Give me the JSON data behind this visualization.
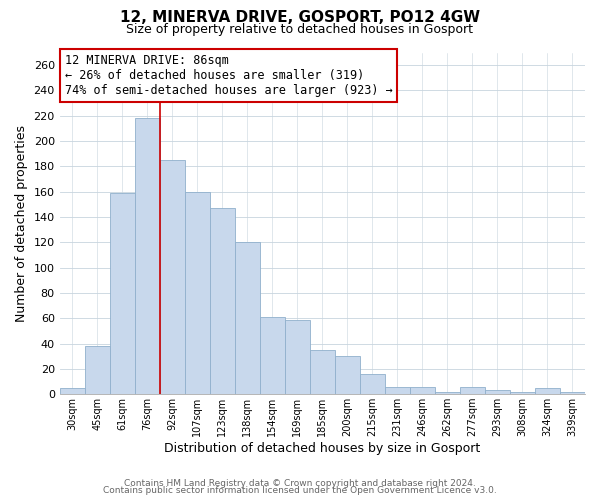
{
  "title": "12, MINERVA DRIVE, GOSPORT, PO12 4GW",
  "subtitle": "Size of property relative to detached houses in Gosport",
  "xlabel": "Distribution of detached houses by size in Gosport",
  "ylabel": "Number of detached properties",
  "bar_labels": [
    "30sqm",
    "45sqm",
    "61sqm",
    "76sqm",
    "92sqm",
    "107sqm",
    "123sqm",
    "138sqm",
    "154sqm",
    "169sqm",
    "185sqm",
    "200sqm",
    "215sqm",
    "231sqm",
    "246sqm",
    "262sqm",
    "277sqm",
    "293sqm",
    "308sqm",
    "324sqm",
    "339sqm"
  ],
  "bar_values": [
    5,
    38,
    159,
    218,
    185,
    160,
    147,
    120,
    61,
    59,
    35,
    30,
    16,
    6,
    6,
    2,
    6,
    3,
    2,
    5,
    2
  ],
  "bar_color": "#c8d8ec",
  "bar_edge_color": "#90b0cc",
  "red_line_x": 4,
  "ylim": [
    0,
    270
  ],
  "yticks": [
    0,
    20,
    40,
    60,
    80,
    100,
    120,
    140,
    160,
    180,
    200,
    220,
    240,
    260
  ],
  "annotation_title": "12 MINERVA DRIVE: 86sqm",
  "annotation_line1": "← 26% of detached houses are smaller (319)",
  "annotation_line2": "74% of semi-detached houses are larger (923) →",
  "box_facecolor": "#ffffff",
  "box_edgecolor": "#cc0000",
  "footnote1": "Contains HM Land Registry data © Crown copyright and database right 2024.",
  "footnote2": "Contains public sector information licensed under the Open Government Licence v3.0.",
  "background_color": "#ffffff",
  "grid_color": "#c8d4de",
  "title_fontsize": 11,
  "subtitle_fontsize": 9,
  "xlabel_fontsize": 9,
  "ylabel_fontsize": 9
}
